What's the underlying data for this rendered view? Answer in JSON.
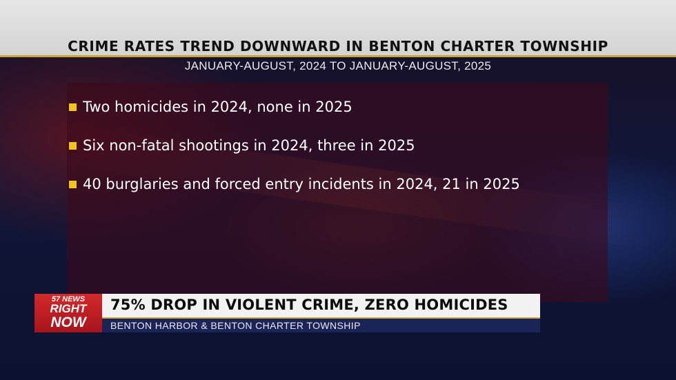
{
  "header": {
    "title": "CRIME RATES TREND DOWNWARD IN BENTON CHARTER TOWNSHIP",
    "subtitle": "JANUARY-AUGUST, 2024 TO JANUARY-AUGUST, 2025"
  },
  "bullets": [
    "Two homicides in 2024, none in 2025",
    "Six non-fatal shootings in 2024, three in 2025",
    "40 burglaries and forced entry incidents in 2024, 21 in 2025"
  ],
  "ticker": {
    "logo_brand": "57 NEWS",
    "logo_line1": "RIGHT",
    "logo_line2": "NOW",
    "headline": "75% DROP IN VIOLENT CRIME, ZERO HOMICIDES",
    "subline": "BENTON HARBOR & BENTON CHARTER TOWNSHIP"
  },
  "colors": {
    "bullet_marker": "#f0c419",
    "header_bg": "#e0e0e0",
    "accent_gold": "#c9a636",
    "logo_red": "#c4212a",
    "ticker_navy": "#1b2456"
  }
}
